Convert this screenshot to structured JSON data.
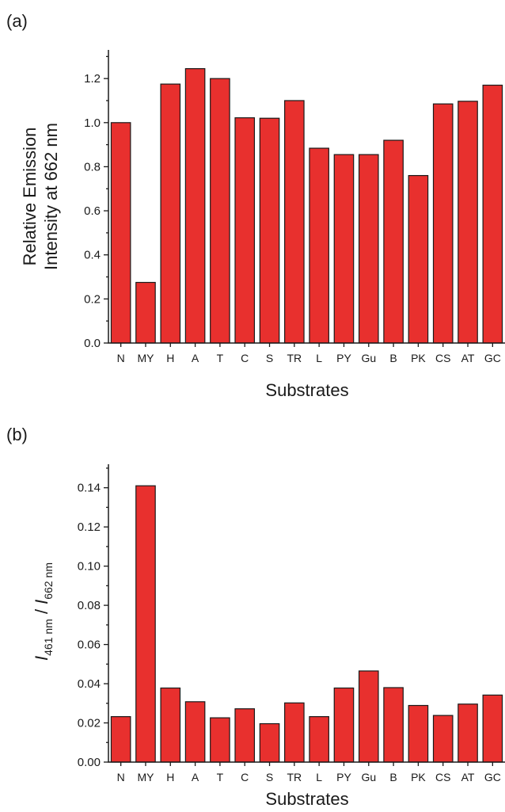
{
  "colors": {
    "bar_fill": "#e8302e",
    "bar_stroke": "#1a1a1a",
    "axis": "#1a1a1a"
  },
  "chart_data": [
    {
      "type": "bar",
      "panel_label": "(a)",
      "categories": [
        "N",
        "MY",
        "H",
        "A",
        "T",
        "C",
        "S",
        "TR",
        "L",
        "PY",
        "Gu",
        "B",
        "PK",
        "CS",
        "AT",
        "GC"
      ],
      "values": [
        1.0,
        0.275,
        1.175,
        1.245,
        1.2,
        1.022,
        1.02,
        1.1,
        0.884,
        0.855,
        0.855,
        0.92,
        0.76,
        1.085,
        1.097,
        1.17
      ],
      "title": "",
      "xlabel": "Substrates",
      "ylabel_line1": "Relative Emission",
      "ylabel_line2": "Intensity at 662 nm",
      "ylim": [
        0,
        1.33
      ],
      "yticks": [
        0.0,
        0.2,
        0.4,
        0.6,
        0.8,
        1.0,
        1.2
      ],
      "ytick_labels": [
        "0.0",
        "0.2",
        "0.4",
        "0.6",
        "0.8",
        "1.0",
        "1.2"
      ],
      "grid": false,
      "legend": "none"
    },
    {
      "type": "bar",
      "panel_label": "(b)",
      "categories": [
        "N",
        "MY",
        "H",
        "A",
        "T",
        "C",
        "S",
        "TR",
        "L",
        "PY",
        "Gu",
        "B",
        "PK",
        "CS",
        "AT",
        "GC"
      ],
      "values": [
        0.0232,
        0.141,
        0.0378,
        0.0308,
        0.0226,
        0.0272,
        0.0196,
        0.0302,
        0.0232,
        0.0378,
        0.0465,
        0.038,
        0.0289,
        0.0238,
        0.0296,
        0.0342
      ],
      "title": "",
      "xlabel": "Substrates",
      "ylabel": {
        "main1": "I",
        "sub1": "461 nm",
        "sep": " / ",
        "main2": "I",
        "sub2": "662 nm"
      },
      "ylim": [
        0,
        0.152
      ],
      "yticks": [
        0.0,
        0.02,
        0.04,
        0.06,
        0.08,
        0.1,
        0.12,
        0.14
      ],
      "ytick_labels": [
        "0.00",
        "0.02",
        "0.04",
        "0.06",
        "0.08",
        "0.10",
        "0.12",
        "0.14"
      ],
      "grid": false,
      "legend": "none"
    }
  ]
}
